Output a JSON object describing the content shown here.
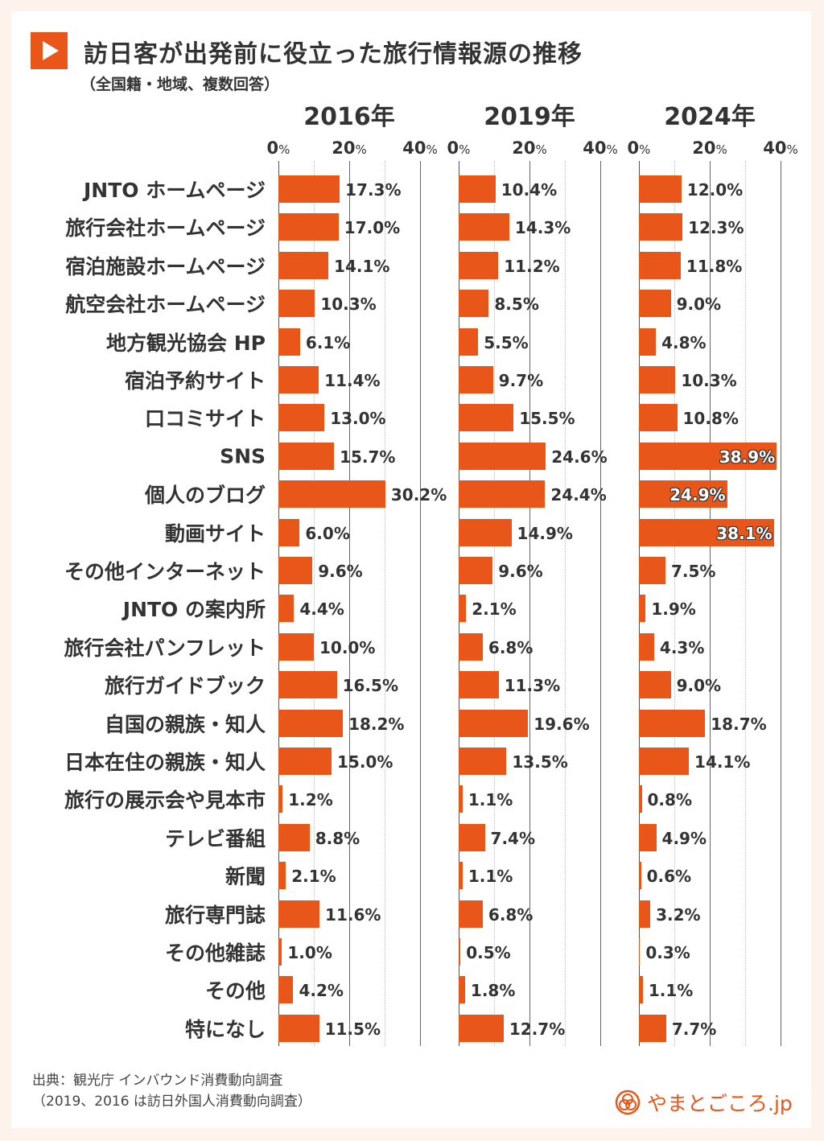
{
  "title": "訪日客が出発前に役立った旅行情報源の推移",
  "subtitle": "（全国籍・地域、複数回答）",
  "source_line1": "出典：観光庁 インバウンド消費動向調査",
  "source_line2": "（2019、2016 は訪日外国人消費動向調査）",
  "logo_text": "やまとごころ.jp",
  "colors": {
    "bar": "#e8561a",
    "background": "#fdf3ec"
  },
  "chart_data": {
    "type": "bar",
    "orientation": "horizontal",
    "categories": [
      "JNTO ホームページ",
      "旅行会社ホームページ",
      "宿泊施設ホームページ",
      "航空会社ホームページ",
      "地方観光協会 HP",
      "宿泊予約サイト",
      "口コミサイト",
      "SNS",
      "個人のブログ",
      "動画サイト",
      "その他インターネット",
      "JNTO の案内所",
      "旅行会社パンフレット",
      "旅行ガイドブック",
      "自国の親族・知人",
      "日本在住の親族・知人",
      "旅行の展示会や見本市",
      "テレビ番組",
      "新聞",
      "旅行専門誌",
      "その他雑誌",
      "その他",
      "特になし"
    ],
    "xlim": [
      0,
      40
    ],
    "ticks": [
      "0",
      "20",
      "40"
    ],
    "tick_unit": "%",
    "grid": true,
    "series": [
      {
        "name": "2016年",
        "values": [
          17.3,
          17.0,
          14.1,
          10.3,
          6.1,
          11.4,
          13.0,
          15.7,
          30.2,
          6.0,
          9.6,
          4.4,
          10.0,
          16.5,
          18.2,
          15.0,
          1.2,
          8.8,
          2.1,
          11.6,
          1.0,
          4.2,
          11.5
        ]
      },
      {
        "name": "2019年",
        "values": [
          10.4,
          14.3,
          11.2,
          8.5,
          5.5,
          9.7,
          15.5,
          24.6,
          24.4,
          14.9,
          9.6,
          2.1,
          6.8,
          11.3,
          19.6,
          13.5,
          1.1,
          7.4,
          1.1,
          6.8,
          0.5,
          1.8,
          12.7
        ]
      },
      {
        "name": "2024年",
        "values": [
          12.0,
          12.3,
          11.8,
          9.0,
          4.8,
          10.3,
          10.8,
          38.9,
          24.9,
          38.1,
          7.5,
          1.9,
          4.3,
          9.0,
          18.7,
          14.1,
          0.8,
          4.9,
          0.6,
          3.2,
          0.3,
          1.1,
          7.7
        ]
      }
    ]
  }
}
